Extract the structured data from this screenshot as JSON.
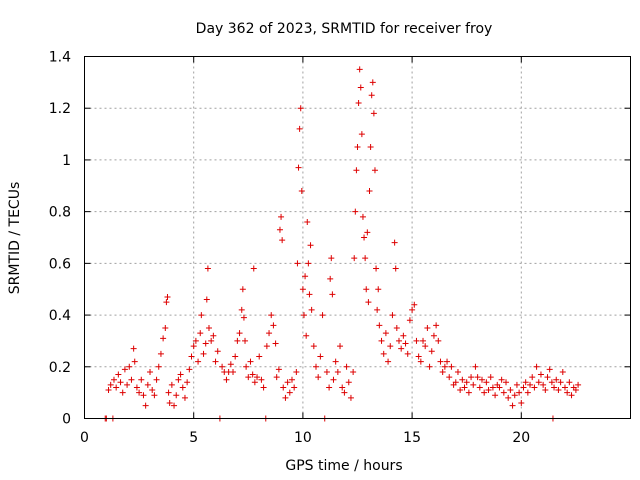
{
  "chart_data": {
    "type": "scatter",
    "title": "Day 362 of 2023, SRMTID for receiver froy",
    "xlabel": "GPS time / hours",
    "ylabel": "SRMTID / TECUs",
    "xlim": [
      0,
      25
    ],
    "ylim": [
      0,
      1.4
    ],
    "x_ticks": [
      0,
      5,
      10,
      15,
      20
    ],
    "x_tick_labels": [
      "0",
      "5",
      "10",
      "15",
      "20"
    ],
    "y_ticks": [
      0,
      0.2,
      0.4,
      0.6,
      0.8,
      1.0,
      1.2,
      1.4
    ],
    "y_tick_labels": [
      "0",
      "0.2",
      "0.4",
      "0.6",
      "0.8",
      "1",
      "1.2",
      "1.4"
    ],
    "grid": true,
    "marker": "+",
    "series_color": "#dd0000",
    "series": [
      {
        "name": "SRMTID",
        "points": [
          [
            0.95,
            0
          ],
          [
            1.0,
            0
          ],
          [
            1.1,
            0.11
          ],
          [
            1.2,
            0.13
          ],
          [
            1.3,
            0
          ],
          [
            1.35,
            0.15
          ],
          [
            1.45,
            0.12
          ],
          [
            1.55,
            0.17
          ],
          [
            1.65,
            0.14
          ],
          [
            1.75,
            0.1
          ],
          [
            1.85,
            0.19
          ],
          [
            1.95,
            0.13
          ],
          [
            2.05,
            0.2
          ],
          [
            2.15,
            0.15
          ],
          [
            2.25,
            0.27
          ],
          [
            2.3,
            0.22
          ],
          [
            2.4,
            0.12
          ],
          [
            2.5,
            0.1
          ],
          [
            2.6,
            0.15
          ],
          [
            2.7,
            0.09
          ],
          [
            2.8,
            0.05
          ],
          [
            2.9,
            0.13
          ],
          [
            3.0,
            0.18
          ],
          [
            3.1,
            0.11
          ],
          [
            3.2,
            0.09
          ],
          [
            3.3,
            0.15
          ],
          [
            3.4,
            0.2
          ],
          [
            3.5,
            0.25
          ],
          [
            3.6,
            0.31
          ],
          [
            3.7,
            0.35
          ],
          [
            3.75,
            0.45
          ],
          [
            3.8,
            0.47
          ],
          [
            3.85,
            0.1
          ],
          [
            3.9,
            0.06
          ],
          [
            4.0,
            0.13
          ],
          [
            4.1,
            0.05
          ],
          [
            4.2,
            0.09
          ],
          [
            4.3,
            0.15
          ],
          [
            4.4,
            0.17
          ],
          [
            4.5,
            0.12
          ],
          [
            4.6,
            0.08
          ],
          [
            4.7,
            0.14
          ],
          [
            4.8,
            0.19
          ],
          [
            4.9,
            0.24
          ],
          [
            5.0,
            0.28
          ],
          [
            5.1,
            0.3
          ],
          [
            5.2,
            0.22
          ],
          [
            5.3,
            0.33
          ],
          [
            5.35,
            0.4
          ],
          [
            5.45,
            0.25
          ],
          [
            5.55,
            0.29
          ],
          [
            5.6,
            0.46
          ],
          [
            5.65,
            0.58
          ],
          [
            5.7,
            0.35
          ],
          [
            5.8,
            0.3
          ],
          [
            5.9,
            0.32
          ],
          [
            6.0,
            0.22
          ],
          [
            6.1,
            0.26
          ],
          [
            6.2,
            0
          ],
          [
            6.3,
            0.2
          ],
          [
            6.4,
            0.18
          ],
          [
            6.5,
            0.15
          ],
          [
            6.6,
            0.18
          ],
          [
            6.7,
            0.21
          ],
          [
            6.8,
            0.18
          ],
          [
            6.9,
            0.24
          ],
          [
            7.0,
            0.3
          ],
          [
            7.1,
            0.33
          ],
          [
            7.2,
            0.42
          ],
          [
            7.25,
            0.5
          ],
          [
            7.3,
            0.39
          ],
          [
            7.35,
            0.3
          ],
          [
            7.4,
            0.2
          ],
          [
            7.5,
            0.16
          ],
          [
            7.6,
            0.22
          ],
          [
            7.7,
            0.17
          ],
          [
            7.75,
            0.58
          ],
          [
            7.8,
            0.14
          ],
          [
            7.9,
            0.16
          ],
          [
            8.0,
            0.24
          ],
          [
            8.1,
            0.15
          ],
          [
            8.2,
            0.12
          ],
          [
            8.3,
            0
          ],
          [
            8.35,
            0.28
          ],
          [
            8.45,
            0.33
          ],
          [
            8.55,
            0.4
          ],
          [
            8.65,
            0.36
          ],
          [
            8.75,
            0.29
          ],
          [
            8.8,
            0.16
          ],
          [
            8.9,
            0.19
          ],
          [
            8.95,
            0.73
          ],
          [
            9.0,
            0.78
          ],
          [
            9.05,
            0.69
          ],
          [
            9.1,
            0.12
          ],
          [
            9.2,
            0.08
          ],
          [
            9.3,
            0.14
          ],
          [
            9.4,
            0.1
          ],
          [
            9.5,
            0.15
          ],
          [
            9.6,
            0.12
          ],
          [
            9.7,
            0.18
          ],
          [
            9.75,
            0.6
          ],
          [
            9.8,
            0.97
          ],
          [
            9.85,
            1.12
          ],
          [
            9.9,
            1.2
          ],
          [
            9.95,
            0.88
          ],
          [
            10.0,
            0.5
          ],
          [
            10.05,
            0.4
          ],
          [
            10.1,
            0.55
          ],
          [
            10.15,
            0.32
          ],
          [
            10.2,
            0.76
          ],
          [
            10.25,
            0.6
          ],
          [
            10.3,
            0.48
          ],
          [
            10.35,
            0.67
          ],
          [
            10.4,
            0.42
          ],
          [
            10.5,
            0.28
          ],
          [
            10.6,
            0.2
          ],
          [
            10.7,
            0.16
          ],
          [
            10.8,
            0.24
          ],
          [
            10.9,
            0.4
          ],
          [
            11.0,
            0
          ],
          [
            11.1,
            0.18
          ],
          [
            11.2,
            0.12
          ],
          [
            11.25,
            0.54
          ],
          [
            11.3,
            0.62
          ],
          [
            11.35,
            0.48
          ],
          [
            11.4,
            0.15
          ],
          [
            11.5,
            0.22
          ],
          [
            11.6,
            0.18
          ],
          [
            11.7,
            0.28
          ],
          [
            11.8,
            0.12
          ],
          [
            11.9,
            0.1
          ],
          [
            12.0,
            0.2
          ],
          [
            12.1,
            0.14
          ],
          [
            12.2,
            0.08
          ],
          [
            12.3,
            0.18
          ],
          [
            12.35,
            0.62
          ],
          [
            12.4,
            0.8
          ],
          [
            12.45,
            0.96
          ],
          [
            12.5,
            1.05
          ],
          [
            12.55,
            1.22
          ],
          [
            12.6,
            1.35
          ],
          [
            12.65,
            1.28
          ],
          [
            12.7,
            1.1
          ],
          [
            12.75,
            0.78
          ],
          [
            12.8,
            0.7
          ],
          [
            12.85,
            0.62
          ],
          [
            12.9,
            0.5
          ],
          [
            12.95,
            0.72
          ],
          [
            13.0,
            0.45
          ],
          [
            13.05,
            0.88
          ],
          [
            13.1,
            1.05
          ],
          [
            13.15,
            1.25
          ],
          [
            13.2,
            1.3
          ],
          [
            13.25,
            1.18
          ],
          [
            13.3,
            0.96
          ],
          [
            13.35,
            0.58
          ],
          [
            13.4,
            0.42
          ],
          [
            13.45,
            0.5
          ],
          [
            13.5,
            0.36
          ],
          [
            13.6,
            0.3
          ],
          [
            13.7,
            0.25
          ],
          [
            13.8,
            0.33
          ],
          [
            13.9,
            0.22
          ],
          [
            14.0,
            0.28
          ],
          [
            14.1,
            0.4
          ],
          [
            14.2,
            0.68
          ],
          [
            14.25,
            0.58
          ],
          [
            14.3,
            0.35
          ],
          [
            14.4,
            0.3
          ],
          [
            14.5,
            0.27
          ],
          [
            14.6,
            0.32
          ],
          [
            14.7,
            0.29
          ],
          [
            14.8,
            0.25
          ],
          [
            14.9,
            0.38
          ],
          [
            15.0,
            0.42
          ],
          [
            15.1,
            0.44
          ],
          [
            15.2,
            0.3
          ],
          [
            15.3,
            0.24
          ],
          [
            15.4,
            0.22
          ],
          [
            15.5,
            0.3
          ],
          [
            15.6,
            0.28
          ],
          [
            15.7,
            0.35
          ],
          [
            15.8,
            0.2
          ],
          [
            15.9,
            0.26
          ],
          [
            16.0,
            0.32
          ],
          [
            16.1,
            0.36
          ],
          [
            16.2,
            0.3
          ],
          [
            16.3,
            0.22
          ],
          [
            16.4,
            0.18
          ],
          [
            16.5,
            0.2
          ],
          [
            16.6,
            0.22
          ],
          [
            16.7,
            0.16
          ],
          [
            16.8,
            0.2
          ],
          [
            16.9,
            0.13
          ],
          [
            17.0,
            0.14
          ],
          [
            17.1,
            0.18
          ],
          [
            17.2,
            0.11
          ],
          [
            17.3,
            0.15
          ],
          [
            17.4,
            0.12
          ],
          [
            17.5,
            0.14
          ],
          [
            17.6,
            0.1
          ],
          [
            17.7,
            0.16
          ],
          [
            17.8,
            0.13
          ],
          [
            17.9,
            0.2
          ],
          [
            18.0,
            0.16
          ],
          [
            18.1,
            0.12
          ],
          [
            18.2,
            0.15
          ],
          [
            18.3,
            0.1
          ],
          [
            18.4,
            0.14
          ],
          [
            18.5,
            0.11
          ],
          [
            18.6,
            0.16
          ],
          [
            18.7,
            0.12
          ],
          [
            18.8,
            0.09
          ],
          [
            18.9,
            0.13
          ],
          [
            19.0,
            0.12
          ],
          [
            19.1,
            0.15
          ],
          [
            19.2,
            0.1
          ],
          [
            19.3,
            0.14
          ],
          [
            19.4,
            0.08
          ],
          [
            19.5,
            0.11
          ],
          [
            19.6,
            0.05
          ],
          [
            19.7,
            0.09
          ],
          [
            19.8,
            0.13
          ],
          [
            19.9,
            0.1
          ],
          [
            20.0,
            0.06
          ],
          [
            20.1,
            0.12
          ],
          [
            20.2,
            0.14
          ],
          [
            20.3,
            0.1
          ],
          [
            20.4,
            0.13
          ],
          [
            20.5,
            0.16
          ],
          [
            20.6,
            0.12
          ],
          [
            20.7,
            0.2
          ],
          [
            20.8,
            0.14
          ],
          [
            20.9,
            0.17
          ],
          [
            21.0,
            0.13
          ],
          [
            21.1,
            0.11
          ],
          [
            21.2,
            0.16
          ],
          [
            21.3,
            0.19
          ],
          [
            21.4,
            0.14
          ],
          [
            21.45,
            0
          ],
          [
            21.5,
            0.12
          ],
          [
            21.6,
            0.15
          ],
          [
            21.7,
            0.11
          ],
          [
            21.8,
            0.14
          ],
          [
            21.9,
            0.18
          ],
          [
            22.0,
            0.12
          ],
          [
            22.1,
            0.1
          ],
          [
            22.2,
            0.14
          ],
          [
            22.3,
            0.09
          ],
          [
            22.4,
            0.12
          ],
          [
            22.5,
            0.11
          ],
          [
            22.6,
            0.13
          ]
        ]
      }
    ]
  }
}
